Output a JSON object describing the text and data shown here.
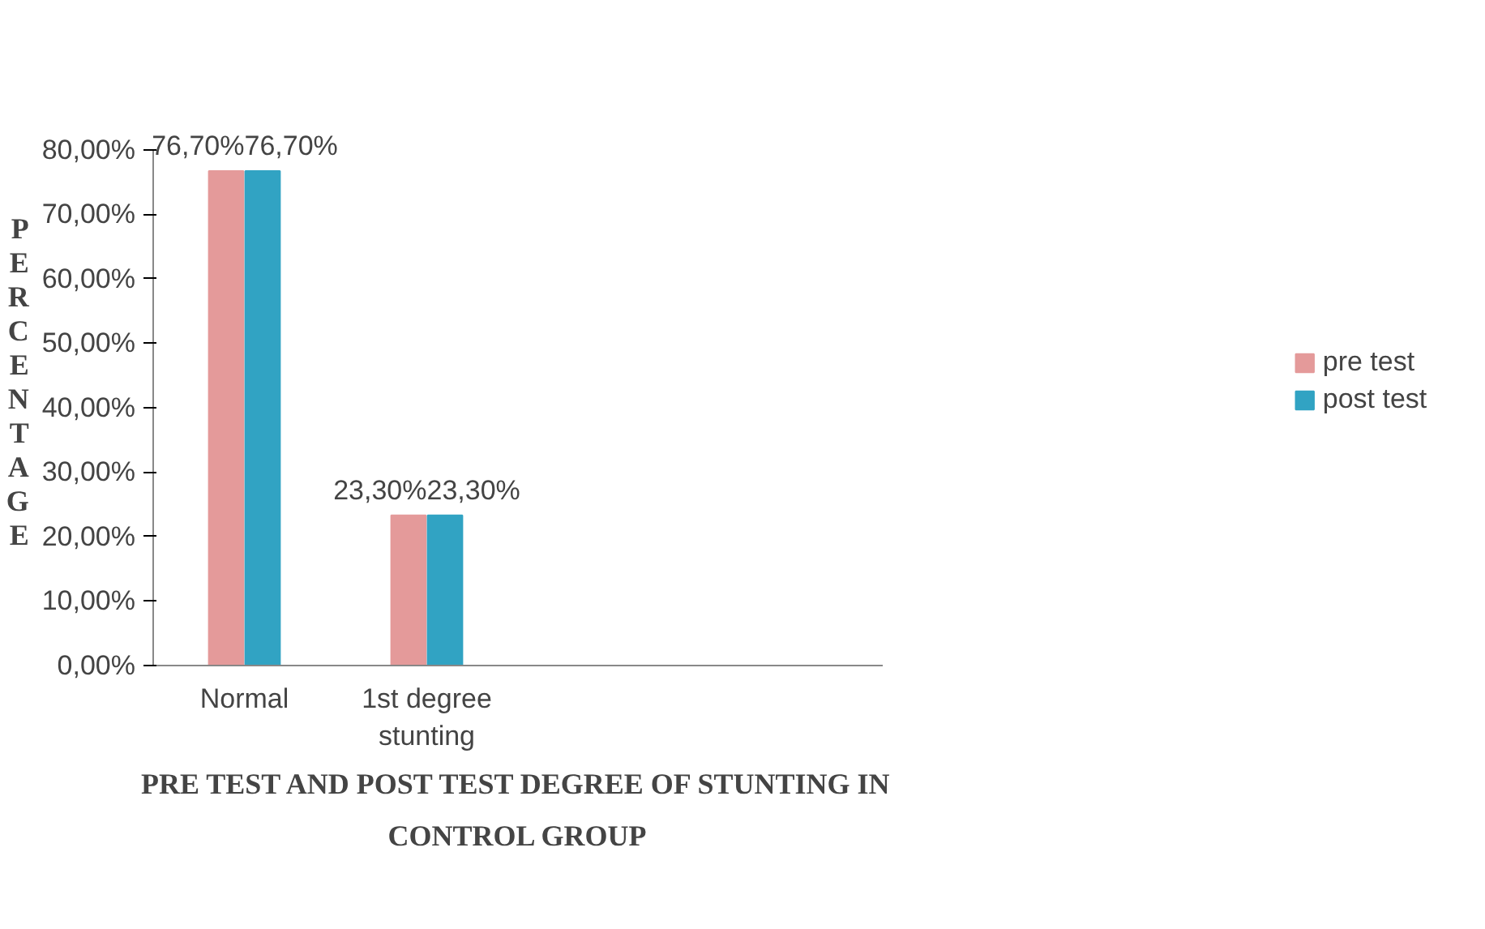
{
  "chart_data": {
    "type": "bar",
    "xlabel": "PRE TEST AND POST TEST DEGREE OF STUNTING IN CONTROL GROUP",
    "ylabel": "PERCENTAGE",
    "categories": [
      "Normal",
      "1st degree stunting",
      null,
      null
    ],
    "series": [
      {
        "name": "pre test",
        "color": "#e49a9a",
        "values": [
          76.7,
          23.3,
          null,
          null
        ],
        "value_labels": [
          "76,70%",
          "23,30%",
          null,
          null
        ]
      },
      {
        "name": "post test",
        "color": "#31a3c3",
        "values": [
          76.7,
          23.3,
          null,
          null
        ],
        "value_labels": [
          "76,70%",
          "23,30%",
          null,
          null
        ]
      }
    ],
    "ylim": [
      0,
      80
    ],
    "yticks": [
      {
        "value": 0,
        "label": "0,00%"
      },
      {
        "value": 10,
        "label": "10,00%"
      },
      {
        "value": 20,
        "label": "20,00%"
      },
      {
        "value": 30,
        "label": "30,00%"
      },
      {
        "value": 40,
        "label": "40,00%"
      },
      {
        "value": 50,
        "label": "50,00%"
      },
      {
        "value": 60,
        "label": "60,00%"
      },
      {
        "value": 70,
        "label": "70,00%"
      },
      {
        "value": 80,
        "label": "80,00%"
      }
    ],
    "grid": false,
    "legend": "right"
  }
}
